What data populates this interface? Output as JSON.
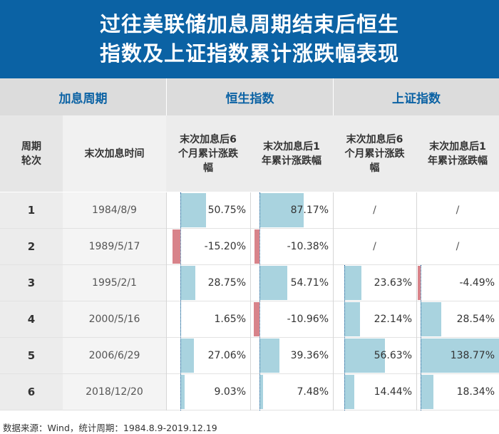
{
  "title": {
    "line1": "过往美联储加息周期结束后恒生",
    "line2": "指数及上证指数累计涨跌幅表现"
  },
  "groups": {
    "hike_cycle": "加息周期",
    "hsi": "恒生指数",
    "sse": "上证指数"
  },
  "columns": {
    "period": "周期轮次",
    "last_hike_date": "末次加息时间",
    "hsi_6m": "末次加息后6个月累计涨跌幅",
    "hsi_1y": "末次加息后1年累计涨跌幅",
    "sse_6m": "末次加息后6个月累计涨跌幅",
    "sse_1y": "末次加息后1年累计涨跌幅"
  },
  "chart_data": {
    "type": "table",
    "title": "过往美联储加息周期结束后恒生指数及上证指数累计涨跌幅表现",
    "rows": [
      {
        "period": "1",
        "date": "1984/8/9",
        "hsi_6m": 50.75,
        "hsi_1y": 87.17,
        "sse_6m": null,
        "sse_1y": null,
        "hsi_6m_label": "50.75%",
        "hsi_1y_label": "87.17%",
        "sse_6m_label": "/",
        "sse_1y_label": "/"
      },
      {
        "period": "2",
        "date": "1989/5/17",
        "hsi_6m": -15.2,
        "hsi_1y": -10.38,
        "sse_6m": null,
        "sse_1y": null,
        "hsi_6m_label": "-15.20%",
        "hsi_1y_label": "-10.38%",
        "sse_6m_label": "/",
        "sse_1y_label": "/"
      },
      {
        "period": "3",
        "date": "1995/2/1",
        "hsi_6m": 28.75,
        "hsi_1y": 54.71,
        "sse_6m": 23.63,
        "sse_1y": -4.49,
        "hsi_6m_label": "28.75%",
        "hsi_1y_label": "54.71%",
        "sse_6m_label": "23.63%",
        "sse_1y_label": "-4.49%"
      },
      {
        "period": "4",
        "date": "2000/5/16",
        "hsi_6m": 1.65,
        "hsi_1y": -10.96,
        "sse_6m": 22.14,
        "sse_1y": 28.54,
        "hsi_6m_label": "1.65%",
        "hsi_1y_label": "-10.96%",
        "sse_6m_label": "22.14%",
        "sse_1y_label": "28.54%"
      },
      {
        "period": "5",
        "date": "2006/6/29",
        "hsi_6m": 27.06,
        "hsi_1y": 39.36,
        "sse_6m": 56.63,
        "sse_1y": 138.77,
        "hsi_6m_label": "27.06%",
        "hsi_1y_label": "39.36%",
        "sse_6m_label": "56.63%",
        "sse_1y_label": "138.77%"
      },
      {
        "period": "6",
        "date": "2018/12/20",
        "hsi_6m": 9.03,
        "hsi_1y": 7.48,
        "sse_6m": 14.44,
        "sse_1y": 18.34,
        "hsi_6m_label": "9.03%",
        "hsi_1y_label": "7.48%",
        "sse_6m_label": "14.44%",
        "sse_1y_label": "18.34%"
      }
    ],
    "scale_max": 138.77
  },
  "colors": {
    "header_bg": "#0b62a4",
    "positive_bar": "#a9d3df",
    "negative_bar": "#d8838a"
  },
  "footnote": "数据来源：Wind，统计周期：1984.8.9-2019.12.19"
}
